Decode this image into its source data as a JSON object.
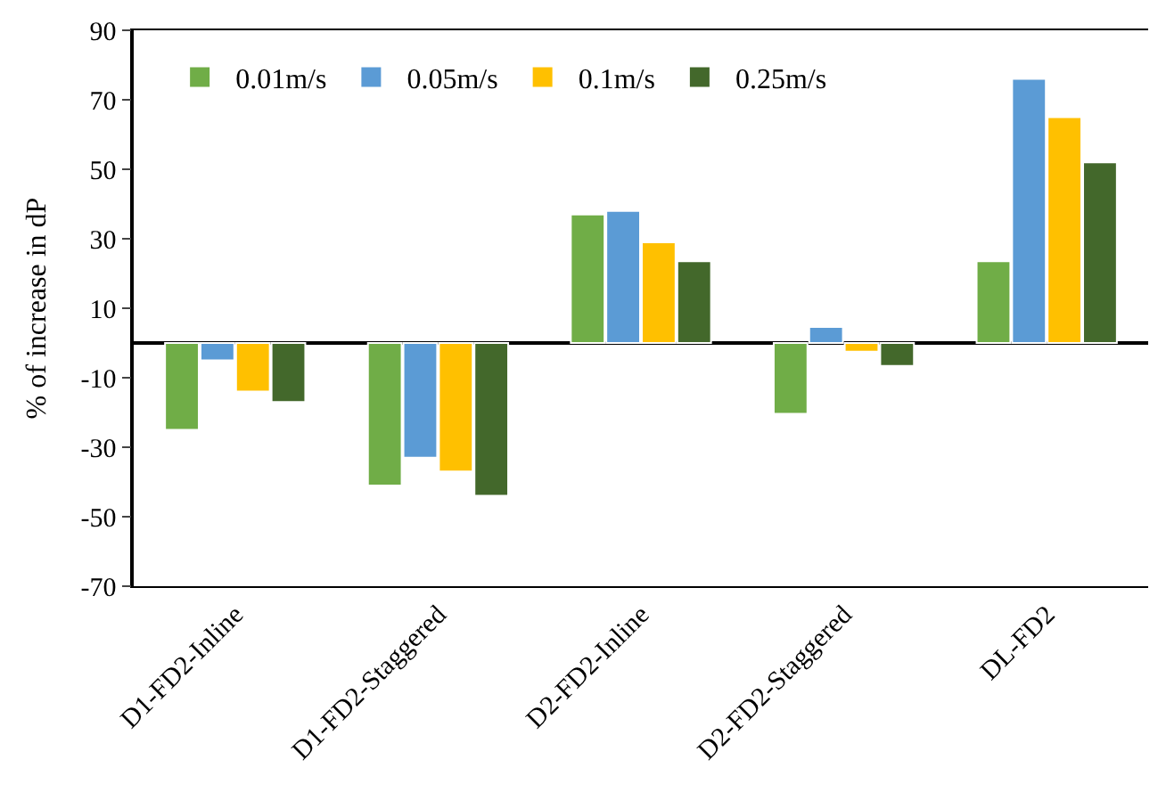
{
  "chart_data": {
    "type": "bar",
    "ylabel": "% of increase in dP",
    "categories": [
      "D1-FD2-Inline",
      "D1-FD2-Staggered",
      "D2-FD2-Inline",
      "D2-FD2-Staggered",
      "DL-FD2"
    ],
    "series": [
      {
        "name": "0.01m/s",
        "color": "#70ad47",
        "values": [
          -25,
          -41,
          37,
          -20.4,
          23.5
        ]
      },
      {
        "name": "0.05m/s",
        "color": "#5b9bd5",
        "values": [
          -5,
          -33,
          38,
          4.6,
          76
        ]
      },
      {
        "name": "0.1m/s",
        "color": "#ffc000",
        "values": [
          -14,
          -37,
          29,
          -2.5,
          65
        ]
      },
      {
        "name": "0.25m/s",
        "color": "#43682b",
        "values": [
          -17,
          -44,
          23.5,
          -6.6,
          52
        ]
      }
    ],
    "ylim": [
      -70,
      90
    ],
    "yticks": [
      -70,
      -50,
      -30,
      -10,
      10,
      30,
      50,
      70,
      90
    ],
    "legend": "top left"
  }
}
